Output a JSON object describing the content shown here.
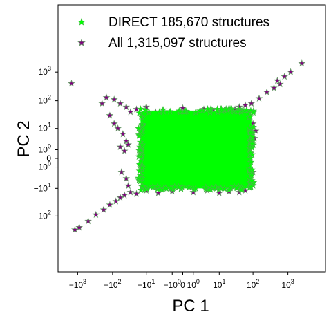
{
  "chart_data": {
    "type": "scatter",
    "xlabel": "PC 1",
    "ylabel": "PC 2",
    "xscale": "symlog",
    "yscale": "symlog",
    "xlim": [
      -3000,
      6000
    ],
    "ylim": [
      -400,
      6000
    ],
    "grid": false,
    "legend_position": "top-left",
    "x_ticks": [
      {
        "value": -1000,
        "base": "−1",
        "exp": "3"
      },
      {
        "value": -100,
        "base": "−1",
        "exp": "2"
      },
      {
        "value": -10,
        "base": "−1",
        "exp": "1"
      },
      {
        "value": -1,
        "base": "−1",
        "exp": "0"
      },
      {
        "value": 0,
        "base": "0",
        "exp": ""
      },
      {
        "value": 1,
        "base": "1",
        "exp": "0"
      },
      {
        "value": 10,
        "base": "1",
        "exp": "1"
      },
      {
        "value": 100,
        "base": "1",
        "exp": "2"
      },
      {
        "value": 1000,
        "base": "1",
        "exp": "3"
      }
    ],
    "y_ticks": [
      {
        "value": 1000,
        "base": "1",
        "exp": "3"
      },
      {
        "value": 100,
        "base": "1",
        "exp": "2"
      },
      {
        "value": 10,
        "base": "1",
        "exp": "1"
      },
      {
        "value": 1,
        "base": "1",
        "exp": "0"
      },
      {
        "value": 0,
        "base": "0",
        "exp": ""
      },
      {
        "value": -1,
        "base": "−1",
        "exp": "0"
      },
      {
        "value": -10,
        "base": "−1",
        "exp": "1"
      },
      {
        "value": -100,
        "base": "−1",
        "exp": "2"
      }
    ],
    "series": [
      {
        "name": "DIRECT 185,670 structures",
        "marker": "star",
        "color": "#00ff00",
        "region": {
          "x": [
            -15,
            90
          ],
          "y": [
            -10,
            45
          ]
        }
      },
      {
        "name": "All 1,315,097 structures",
        "marker": "star",
        "color": "#800080",
        "points": [
          [
            -1200,
            -300
          ],
          [
            -900,
            -250
          ],
          [
            -500,
            -150
          ],
          [
            -300,
            -90
          ],
          [
            -180,
            -60
          ],
          [
            -120,
            -40
          ],
          [
            -80,
            -30
          ],
          [
            -60,
            -22
          ],
          [
            -45,
            -18
          ],
          [
            -150,
            130
          ],
          [
            -90,
            110
          ],
          [
            -60,
            80
          ],
          [
            -40,
            60
          ],
          [
            -30,
            40
          ],
          [
            -120,
            30
          ],
          [
            -90,
            15
          ],
          [
            -70,
            10
          ],
          [
            -50,
            6
          ],
          [
            -40,
            3
          ],
          [
            -35,
            2
          ],
          [
            -60,
            1.5
          ],
          [
            -45,
            0.8
          ],
          [
            -55,
            -2
          ],
          [
            -40,
            -4
          ],
          [
            -35,
            -8
          ],
          [
            -30,
            -14
          ],
          [
            -20,
            50
          ],
          [
            -10,
            60
          ],
          [
            -5,
            40
          ],
          [
            0,
            55
          ],
          [
            3,
            50
          ],
          [
            6,
            45
          ],
          [
            12,
            38
          ],
          [
            20,
            42
          ],
          [
            30,
            50
          ],
          [
            40,
            60
          ],
          [
            60,
            70
          ],
          [
            90,
            80
          ],
          [
            150,
            120
          ],
          [
            250,
            200
          ],
          [
            400,
            280
          ],
          [
            600,
            380
          ],
          [
            2500,
            2000
          ],
          [
            1200,
            1000
          ],
          [
            800,
            700
          ],
          [
            500,
            500
          ],
          [
            80,
            30
          ],
          [
            100,
            15
          ],
          [
            120,
            8
          ],
          [
            110,
            4
          ],
          [
            95,
            2
          ],
          [
            85,
            0.5
          ],
          [
            100,
            -2
          ],
          [
            90,
            -5
          ],
          [
            80,
            -9
          ],
          [
            60,
            -12
          ],
          [
            40,
            -14
          ],
          [
            20,
            -13
          ],
          [
            10,
            -15
          ],
          [
            4,
            -12
          ],
          [
            1,
            -14
          ],
          [
            -1,
            -13
          ],
          [
            -4,
            -15
          ],
          [
            -10,
            -12
          ],
          [
            -20,
            -16
          ],
          [
            -1500,
            400
          ],
          [
            -200,
            80
          ]
        ]
      }
    ]
  }
}
